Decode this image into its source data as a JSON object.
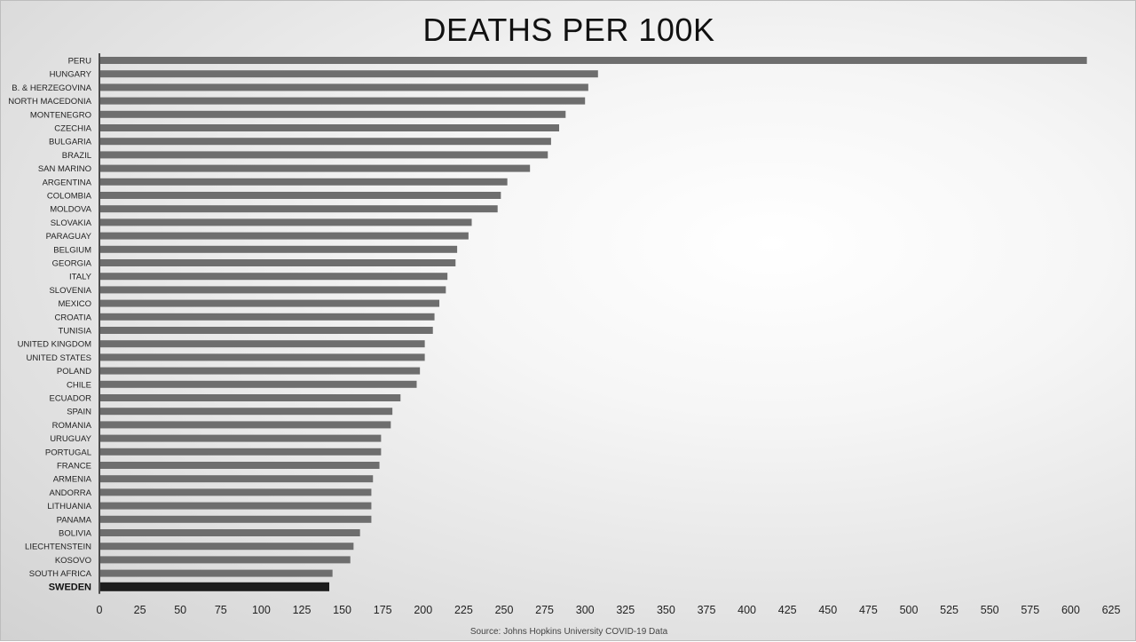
{
  "chart_data": {
    "type": "bar",
    "orientation": "horizontal",
    "title": "DEATHS PER 100K",
    "xlabel": "",
    "ylabel": "",
    "xlim": [
      0,
      625
    ],
    "xticks": [
      0,
      25,
      50,
      75,
      100,
      125,
      150,
      175,
      200,
      225,
      250,
      275,
      300,
      325,
      350,
      375,
      400,
      425,
      450,
      475,
      500,
      525,
      550,
      575,
      600,
      625
    ],
    "grid": false,
    "legend": "none",
    "categories": [
      "PERU",
      "HUNGARY",
      "B. & HERZEGOVINA",
      "NORTH MACEDONIA",
      "MONTENEGRO",
      "CZECHIA",
      "BULGARIA",
      "BRAZIL",
      "SAN MARINO",
      "ARGENTINA",
      "COLOMBIA",
      "MOLDOVA",
      "SLOVAKIA",
      "PARAGUAY",
      "BELGIUM",
      "GEORGIA",
      "ITALY",
      "SLOVENIA",
      "MEXICO",
      "CROATIA",
      "TUNISIA",
      "UNITED KINGDOM",
      "UNITED STATES",
      "POLAND",
      "CHILE",
      "ECUADOR",
      "SPAIN",
      "ROMANIA",
      "URUGUAY",
      "PORTUGAL",
      "FRANCE",
      "ARMENIA",
      "ANDORRA",
      "LITHUANIA",
      "PANAMA",
      "BOLIVIA",
      "LIECHTENSTEIN",
      "KOSOVO",
      "SOUTH AFRICA",
      "SWEDEN"
    ],
    "values": [
      610,
      308,
      302,
      300,
      288,
      284,
      279,
      277,
      266,
      252,
      248,
      246,
      230,
      228,
      221,
      220,
      215,
      214,
      210,
      207,
      206,
      201,
      201,
      198,
      196,
      186,
      181,
      180,
      174,
      174,
      173,
      169,
      168,
      168,
      168,
      161,
      157,
      155,
      144,
      142
    ],
    "highlight": "SWEDEN",
    "colors": {
      "bar": "#6e6e6e",
      "highlight_bar": "#1c1c1c",
      "axis": "#1a1a1a"
    },
    "source": "Source: Johns Hopkins University COVID-19 Data"
  }
}
